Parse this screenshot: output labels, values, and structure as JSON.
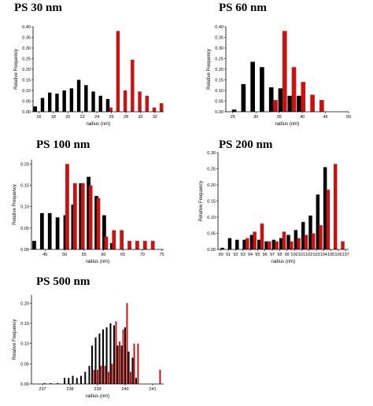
{
  "colors": {
    "black_series": "#000000",
    "red_series": "#cc1111",
    "axis": "#000000"
  },
  "chart_data": [
    {
      "type": "bar",
      "title": "PS 30 nm",
      "xlabel": "radius (nm)",
      "ylabel": "Relative Frequency",
      "xlim": [
        15.2,
        33.2
      ],
      "ylim": [
        0,
        0.4
      ],
      "xticks": [
        16,
        18,
        20,
        22,
        24,
        26,
        28,
        30,
        32
      ],
      "yticks": [
        0.0,
        0.05,
        0.1,
        0.15,
        0.2,
        0.25,
        0.3,
        0.35,
        0.4
      ],
      "ytick_labels": [
        "0.00",
        "0.05",
        "0.10",
        "0.15",
        "0.20",
        "0.25",
        "0.30",
        "0.35",
        "0.40"
      ],
      "series": [
        {
          "color": "black",
          "x": [
            15.5,
            16.5,
            17.5,
            18.5,
            19.5,
            20.5,
            21.5,
            22.5,
            23.5,
            24.5,
            25.5
          ],
          "values": [
            0.025,
            0.065,
            0.09,
            0.085,
            0.1,
            0.11,
            0.15,
            0.125,
            0.095,
            0.075,
            0.06
          ]
        },
        {
          "color": "red",
          "x": [
            25.9,
            26.9,
            27.9,
            28.9,
            29.9,
            30.9,
            31.9,
            32.9
          ],
          "values": [
            0.02,
            0.38,
            0.1,
            0.245,
            0.095,
            0.075,
            0.02,
            0.04
          ]
        }
      ]
    },
    {
      "type": "bar",
      "title": "PS 60 nm",
      "xlabel": "radius (nm)",
      "ylabel": "Relative Frequency",
      "xlim": [
        23.5,
        50
      ],
      "ylim": [
        0,
        0.4
      ],
      "xticks": [
        25,
        30,
        35,
        40,
        45,
        50
      ],
      "yticks": [
        0.0,
        0.05,
        0.1,
        0.15,
        0.2,
        0.25,
        0.3,
        0.35,
        0.4
      ],
      "ytick_labels": [
        "0.00",
        "0.05",
        "0.10",
        "0.15",
        "0.20",
        "0.25",
        "0.30",
        "0.35",
        "0.40"
      ],
      "series": [
        {
          "color": "black",
          "x": [
            25.3,
            27.3,
            29.3,
            31.3,
            33.3,
            35.3,
            37.3,
            39.3
          ],
          "values": [
            0.01,
            0.13,
            0.235,
            0.21,
            0.115,
            0.11,
            0.075,
            0.075
          ]
        },
        {
          "color": "red",
          "x": [
            34.2,
            36.2,
            38.2,
            40.2,
            42.2,
            44.2
          ],
          "values": [
            0.055,
            0.38,
            0.21,
            0.14,
            0.08,
            0.055
          ]
        }
      ]
    },
    {
      "type": "bar",
      "title": "PS 100 nm",
      "xlabel": "radius (nm)",
      "ylabel": "Relative Frequency",
      "xlim": [
        41.5,
        75.5
      ],
      "ylim": [
        0,
        0.21
      ],
      "xticks": [
        45,
        50,
        55,
        60,
        65,
        70,
        75
      ],
      "yticks": [
        0.0,
        0.05,
        0.1,
        0.15,
        0.2
      ],
      "ytick_labels": [
        "0.00",
        "0.05",
        "0.10",
        "0.15",
        "0.20"
      ],
      "series": [
        {
          "color": "black",
          "x": [
            42.2,
            44.2,
            46.2,
            48.2,
            50.2,
            52.2,
            54.2,
            56.2,
            58.2,
            60.2,
            62.2
          ],
          "values": [
            0.02,
            0.085,
            0.085,
            0.075,
            0.08,
            0.105,
            0.155,
            0.17,
            0.125,
            0.08,
            0.015
          ]
        },
        {
          "color": "red",
          "x": [
            50.7,
            52.7,
            54.7,
            56.7,
            58.7,
            60.7,
            62.7,
            64.7,
            66.7,
            68.7,
            70.7,
            72.7
          ],
          "values": [
            0.2,
            0.155,
            0.155,
            0.15,
            0.12,
            0.03,
            0.045,
            0.045,
            0.02,
            0.02,
            0.02,
            0.02
          ]
        }
      ]
    },
    {
      "type": "bar",
      "title": "PS 200 nm",
      "xlabel": "radius (nm)",
      "ylabel": "Relative Frequency",
      "xlim": [
        89.6,
        107.4
      ],
      "ylim": [
        0,
        0.3
      ],
      "xticks": [
        90,
        91,
        92,
        93,
        94,
        95,
        96,
        97,
        98,
        99,
        100,
        101,
        102,
        103,
        104,
        105,
        106,
        107
      ],
      "yticks": [
        0.0,
        0.05,
        0.1,
        0.15,
        0.2,
        0.25,
        0.3
      ],
      "ytick_labels": [
        "0.00",
        "0.05",
        "0.10",
        "0.15",
        "0.20",
        "0.25",
        "0.30"
      ],
      "series": [
        {
          "color": "black",
          "x": [
            90.2,
            91.2,
            92.2,
            93.2,
            94.2,
            95.2,
            96.2,
            97.2,
            98.2,
            99.2,
            100.2,
            101.2,
            102.2,
            103.2,
            104.2
          ],
          "values": [
            0.005,
            0.035,
            0.03,
            0.03,
            0.045,
            0.03,
            0.025,
            0.03,
            0.035,
            0.045,
            0.06,
            0.085,
            0.105,
            0.17,
            0.255
          ]
        },
        {
          "color": "red",
          "x": [
            93.6,
            94.6,
            95.6,
            96.6,
            97.6,
            98.6,
            99.6,
            100.6,
            101.6,
            102.6,
            103.6,
            104.6,
            105.6,
            106.6
          ],
          "values": [
            0.035,
            0.055,
            0.08,
            0.025,
            0.025,
            0.055,
            0.025,
            0.035,
            0.045,
            0.05,
            0.075,
            0.185,
            0.265,
            0.025
          ]
        }
      ]
    },
    {
      "type": "bar",
      "title": "PS 500 nm",
      "xlabel": "radius (nm)",
      "ylabel": "Relative Frequency",
      "xlim": [
        236.6,
        241.4
      ],
      "ylim": [
        0,
        0.22
      ],
      "xticks": [
        237,
        238,
        239,
        240,
        241
      ],
      "yticks": [
        0.0,
        0.05,
        0.1,
        0.15,
        0.2
      ],
      "ytick_labels": [
        "0.00",
        "0.05",
        "0.10",
        "0.15",
        "0.20"
      ],
      "series": [
        {
          "color": "black",
          "x": [
            237.07,
            237.3,
            237.55,
            237.8,
            237.95,
            238.1,
            238.25,
            238.4,
            238.55,
            238.7,
            238.8,
            238.93,
            239.07,
            239.2,
            239.33,
            239.47,
            239.6,
            239.73,
            239.87,
            240.0,
            240.13,
            240.27,
            240.4
          ],
          "values": [
            0.002,
            0.002,
            0.002,
            0.015,
            0.015,
            0.02,
            0.015,
            0.02,
            0.03,
            0.045,
            0.095,
            0.115,
            0.125,
            0.135,
            0.14,
            0.15,
            0.145,
            0.095,
            0.095,
            0.14,
            0.08,
            0.065,
            0.015
          ]
        },
        {
          "color": "red",
          "x": [
            238.87,
            239.0,
            239.13,
            239.27,
            239.4,
            239.53,
            239.67,
            239.8,
            239.93,
            240.07,
            240.2,
            240.33,
            240.47,
            241.27
          ],
          "values": [
            0.035,
            0.035,
            0.045,
            0.045,
            0.03,
            0.05,
            0.155,
            0.105,
            0.135,
            0.2,
            0.03,
            0.1,
            0.1,
            0.035
          ]
        }
      ]
    }
  ]
}
